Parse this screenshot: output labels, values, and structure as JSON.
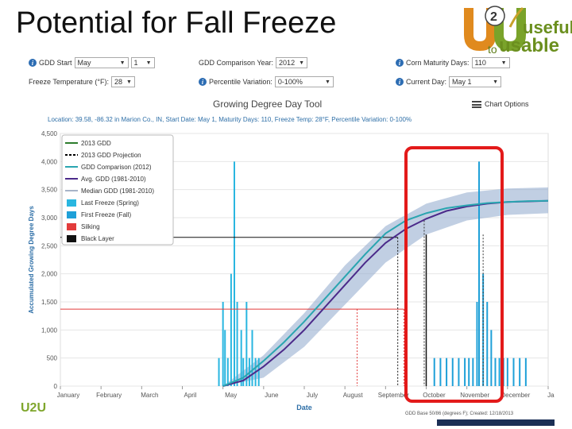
{
  "slide": {
    "title": "Potential for Fall Freeze"
  },
  "logo": {
    "part1": "useful",
    "part2": "to",
    "part3": "usable",
    "footer_mark": "U2U"
  },
  "controls": {
    "gdd_start_label": "GDD Start",
    "gdd_start_month": "May",
    "gdd_start_day": "1",
    "comparison_year_label": "GDD Comparison Year:",
    "comparison_year_value": "2012",
    "maturity_label": "Corn Maturity Days:",
    "maturity_value": "110",
    "freeze_temp_label": "Freeze Temperature (°F):",
    "freeze_temp_value": "28",
    "percentile_label": "Percentile Variation:",
    "percentile_value": "0-100%",
    "current_day_label": "Current Day:",
    "current_day_value": "May 1"
  },
  "tool": {
    "title": "Growing Degree Day Tool",
    "chart_options": "Chart Options",
    "subtitle": "Location: 39.58, -86.32 in Marion Co., IN, Start Date: May 1, Maturity Days: 110, Freeze Temp: 28°F, Percentile Variation: 0-100%",
    "footer_note": "GDD Base 50/86 (degrees F); Created: 12/18/2013"
  },
  "chart_data": {
    "type": "line",
    "xlabel": "Date",
    "ylabel": "Accumulated Growing Degree Days",
    "x_ticks": [
      "January",
      "February",
      "March",
      "April",
      "May",
      "June",
      "July",
      "August",
      "September",
      "October",
      "November",
      "December",
      "Janua"
    ],
    "y_ticks": [
      "4,500",
      "4,000",
      "3,500",
      "3,000",
      "2,500",
      "2,000",
      "1,500",
      "1,000",
      "500",
      "0"
    ],
    "ylim": [
      0,
      4500
    ],
    "x_unit": "month index (0 = Jan 1, 12 = Jan 1 next year)",
    "legend": {
      "placement": "top-left",
      "items": [
        {
          "name": "2013 GDD",
          "color": "#2d7d2d",
          "style": "solid"
        },
        {
          "name": "2013 GDD Projection",
          "color": "#000000",
          "style": "dash"
        },
        {
          "name": "GDD Comparison (2012)",
          "color": "#2aa5b0",
          "style": "solid"
        },
        {
          "name": "Avg. GDD (1981-2010)",
          "color": "#4b2a8a",
          "style": "solid"
        },
        {
          "name": "Median GDD (1981-2010)",
          "color": "#a8b4c8",
          "style": "solid"
        },
        {
          "name": "Last Freeze (Spring)",
          "color": "#29b6e0",
          "style": "box"
        },
        {
          "name": "First Freeze (Fall)",
          "color": "#1ea0d8",
          "style": "box"
        },
        {
          "name": "Silking",
          "color": "#e23b3b",
          "style": "box"
        },
        {
          "name": "Black Layer",
          "color": "#111111",
          "style": "box"
        }
      ]
    },
    "series": [
      {
        "name": "Avg. GDD (1981-2010)",
        "color": "#4b2a8a",
        "x": [
          4.0,
          4.5,
          5.0,
          5.5,
          6.0,
          6.5,
          7.0,
          7.5,
          8.0,
          8.5,
          9.0,
          9.5,
          10.0,
          10.5,
          11.0,
          11.5,
          12.0
        ],
        "y": [
          0,
          100,
          350,
          650,
          1000,
          1400,
          1800,
          2200,
          2550,
          2800,
          2980,
          3120,
          3200,
          3250,
          3280,
          3290,
          3300
        ]
      },
      {
        "name": "GDD Comparison (2012)",
        "color": "#2aa5b0",
        "x": [
          4.0,
          4.5,
          5.0,
          5.5,
          6.0,
          6.5,
          7.0,
          7.5,
          8.0,
          8.5,
          9.0,
          9.5,
          10.0,
          10.5,
          11.0,
          11.5,
          12.0
        ],
        "y": [
          0,
          150,
          450,
          780,
          1150,
          1550,
          1950,
          2350,
          2720,
          2950,
          3080,
          3170,
          3220,
          3260,
          3280,
          3295,
          3300
        ]
      }
    ],
    "band": {
      "name": "Percentile range",
      "x": [
        4.0,
        5.0,
        6.0,
        7.0,
        8.0,
        9.0,
        10.0,
        11.0,
        12.0
      ],
      "low": [
        0,
        150,
        700,
        1450,
        2200,
        2700,
        2950,
        3050,
        3080
      ],
      "high": [
        0,
        550,
        1300,
        2150,
        2850,
        3250,
        3450,
        3520,
        3540
      ]
    },
    "spring_freeze_bars": {
      "x": [
        3.9,
        4.0,
        4.05,
        4.12,
        4.2,
        4.28,
        4.35,
        4.45,
        4.5,
        4.58,
        4.65,
        4.72,
        4.8,
        4.88
      ],
      "y": [
        500,
        1500,
        1000,
        500,
        2000,
        4000,
        1500,
        1000,
        500,
        1500,
        500,
        1000,
        500,
        500
      ]
    },
    "fall_freeze_bars": {
      "x": [
        9.2,
        9.35,
        9.5,
        9.65,
        9.8,
        9.95,
        10.05,
        10.15,
        10.25,
        10.3,
        10.4,
        10.5,
        10.6,
        10.7,
        10.8,
        10.9,
        11.0,
        11.15,
        11.3,
        11.45
      ],
      "y": [
        500,
        500,
        500,
        500,
        500,
        500,
        500,
        500,
        1500,
        4000,
        2000,
        1500,
        1000,
        500,
        500,
        500,
        500,
        500,
        500,
        500
      ]
    },
    "silking": {
      "x": [
        7.3,
        8.45
      ],
      "y": 1370
    },
    "black_layer": {
      "x": 8.3,
      "y": 2650
    },
    "projection_markers": {
      "x": [
        8.95,
        10.4
      ],
      "y": [
        2950,
        2700
      ]
    }
  }
}
